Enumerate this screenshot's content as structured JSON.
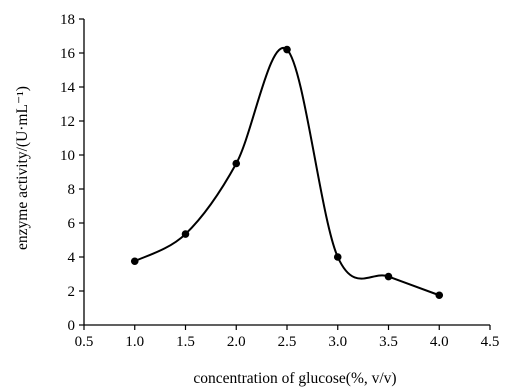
{
  "chart_data": {
    "type": "scatter",
    "series": [
      {
        "x": [
          1.0,
          1.5,
          2.0,
          2.5,
          3.0,
          3.5,
          4.0
        ],
        "values": [
          3.75,
          5.35,
          9.5,
          16.2,
          4.0,
          2.85,
          1.75
        ]
      }
    ],
    "smooth_line": true,
    "xlabel": "concentration of glucose(%, v/v)",
    "ylabel": "enzyme activity/(U·mL⁻¹)",
    "xlim": [
      0.5,
      4.5
    ],
    "ylim": [
      0,
      18
    ],
    "xticks": [
      "0.5",
      "1.0",
      "1.5",
      "2.0",
      "2.5",
      "3.0",
      "3.5",
      "4.0",
      "4.5"
    ],
    "yticks": [
      "0",
      "2",
      "4",
      "6",
      "8",
      "10",
      "12",
      "14",
      "16",
      "18"
    ],
    "grid": false,
    "marker": "filled-circle",
    "color": "#000000"
  }
}
